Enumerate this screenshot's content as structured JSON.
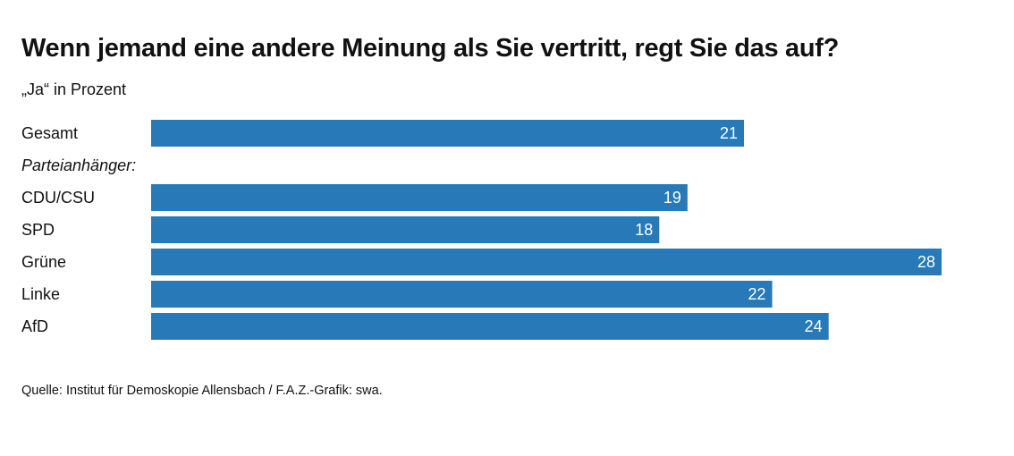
{
  "header": {
    "title": "Wenn jemand eine andere Meinung als Sie vertritt, regt Sie das auf?",
    "subtitle": "„Ja“ in Prozent"
  },
  "footer": {
    "source": "Quelle: Institut für Demoskopie Allensbach  /  F.A.Z.-Grafik: swa."
  },
  "colors": {
    "bar": "#2779b8",
    "value_text": "#ffffff"
  },
  "chart_data": {
    "type": "bar",
    "orientation": "horizontal",
    "title": "Wenn jemand eine andere Meinung als Sie vertritt, regt Sie das auf?",
    "subtitle": "„Ja“ in Prozent",
    "xlabel": "",
    "ylabel": "",
    "xlim": [
      0,
      28
    ],
    "grid": false,
    "groups": [
      {
        "label": "",
        "categories": [
          "Gesamt"
        ],
        "values": [
          21
        ]
      },
      {
        "label": "Parteianhänger:",
        "categories": [
          "CDU/CSU",
          "SPD",
          "Grüne",
          "Linke",
          "AfD"
        ],
        "values": [
          19,
          18,
          28,
          22,
          24
        ]
      }
    ]
  }
}
